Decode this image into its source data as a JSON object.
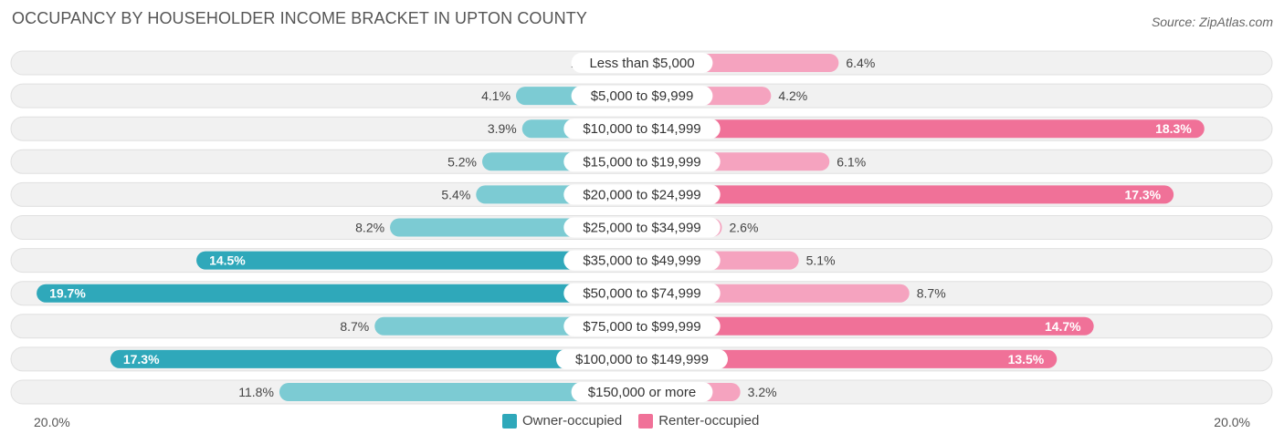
{
  "title": "OCCUPANCY BY HOUSEHOLDER INCOME BRACKET IN UPTON COUNTY",
  "source": "Source: ZipAtlas.com",
  "colors": {
    "owner_light": "#7ccbd3",
    "owner_dark": "#2fa8ba",
    "renter_light": "#f5a3bf",
    "renter_dark": "#f07198",
    "row_bg": "#f1f1f1",
    "row_border": "#e0e0e0"
  },
  "legend": {
    "owner_label": "Owner-occupied",
    "renter_label": "Renter-occupied"
  },
  "axis": {
    "left_label": "20.0%",
    "right_label": "20.0%"
  },
  "chart_data": {
    "type": "bar",
    "orientation": "horizontal-diverging",
    "title": "OCCUPANCY BY HOUSEHOLDER INCOME BRACKET IN UPTON COUNTY",
    "xlim": [
      -20,
      20
    ],
    "categories": [
      "Less than $5,000",
      "$5,000 to $9,999",
      "$10,000 to $14,999",
      "$15,000 to $19,999",
      "$20,000 to $24,999",
      "$25,000 to $34,999",
      "$35,000 to $49,999",
      "$50,000 to $74,999",
      "$75,000 to $99,999",
      "$100,000 to $149,999",
      "$150,000 or more"
    ],
    "series": [
      {
        "name": "Owner-occupied",
        "values": [
          1.2,
          4.1,
          3.9,
          5.2,
          5.4,
          8.2,
          14.5,
          19.7,
          8.7,
          17.3,
          11.8
        ],
        "labels": [
          "1.2%",
          "4.1%",
          "3.9%",
          "5.2%",
          "5.4%",
          "8.2%",
          "14.5%",
          "19.7%",
          "8.7%",
          "17.3%",
          "11.8%"
        ]
      },
      {
        "name": "Renter-occupied",
        "values": [
          6.4,
          4.2,
          18.3,
          6.1,
          17.3,
          2.6,
          5.1,
          8.7,
          14.7,
          13.5,
          3.2
        ],
        "labels": [
          "6.4%",
          "4.2%",
          "18.3%",
          "6.1%",
          "17.3%",
          "2.6%",
          "5.1%",
          "8.7%",
          "14.7%",
          "13.5%",
          "3.2%"
        ]
      }
    ],
    "legend_position": "bottom-center"
  }
}
